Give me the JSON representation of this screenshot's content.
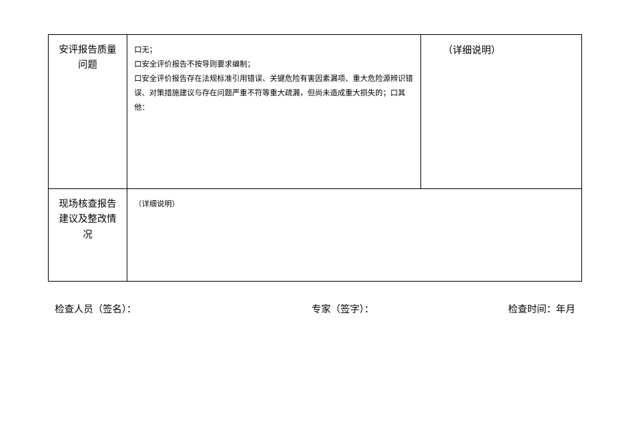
{
  "table": {
    "row1": {
      "label": "安评报告质量问题",
      "content": "口无；\n口安全评价报告不按导则要求编制；\n口安全评价报告存在法规标准引用错误、关键危险有害因素漏项、重大危险源辨识错误、对策措施建议与存在问题严重不符等重大疏漏，但尚未造成重大损失的；口其他：",
      "detail": "（详细说明）"
    },
    "row2": {
      "label": "现场核查报告建议及整改情况",
      "detail": "（详细说明）"
    }
  },
  "footer": {
    "inspector": "检查人员（签名）：",
    "expert": "专家（签字）：",
    "checktime": "检查时间：年月"
  },
  "colors": {
    "border": "#000000",
    "background": "#ffffff",
    "text": "#000000"
  },
  "fonts": {
    "label_size": 14,
    "content_size": 11,
    "footer_size": 14
  }
}
